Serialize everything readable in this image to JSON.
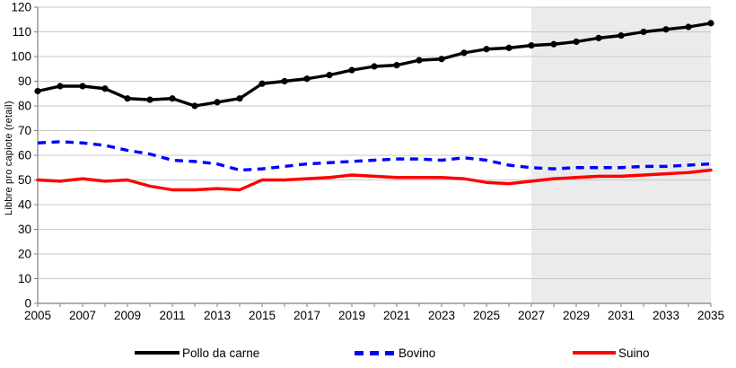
{
  "chart_data": {
    "type": "line",
    "title": "",
    "xlabel": "",
    "ylabel": "Libbre pro capiote (retail)",
    "ylim": [
      0,
      120
    ],
    "ytick_step": 10,
    "x": [
      2005,
      2006,
      2007,
      2008,
      2009,
      2010,
      2011,
      2012,
      2013,
      2014,
      2015,
      2016,
      2017,
      2018,
      2019,
      2020,
      2021,
      2022,
      2023,
      2024,
      2025,
      2026,
      2027,
      2028,
      2029,
      2030,
      2031,
      2032,
      2033,
      2034,
      2035
    ],
    "x_tick_labels": [
      "2005",
      "2007",
      "2009",
      "2011",
      "2013",
      "2015",
      "2017",
      "2019",
      "2021",
      "2023",
      "2025",
      "2027",
      "2029",
      "2031",
      "2033",
      "2035"
    ],
    "grid": true,
    "legend_position": "bottom",
    "forecast_region": {
      "start_year": 2027,
      "end_year": 2035,
      "fill": "#ebebeb"
    },
    "series": [
      {
        "name": "Pollo da carne",
        "color": "#000000",
        "style": "solid",
        "markers": true,
        "values": [
          86,
          88,
          88,
          87,
          83,
          82.5,
          83,
          80,
          81.5,
          83,
          89,
          90,
          91,
          92.5,
          94.5,
          96,
          96.5,
          98.5,
          99,
          101.5,
          103,
          103.5,
          104.5,
          105,
          106,
          107.5,
          108.5,
          110,
          111,
          112,
          113.5
        ]
      },
      {
        "name": "Bovino",
        "color": "#0000fe",
        "style": "dashed",
        "markers": false,
        "values": [
          65,
          65.5,
          65,
          64,
          62,
          60.5,
          58,
          57.5,
          56.5,
          54,
          54.5,
          55.5,
          56.5,
          57,
          57.5,
          58,
          58.5,
          58.5,
          58,
          59,
          58,
          56,
          55,
          54.5,
          55,
          55,
          55,
          55.5,
          55.5,
          56,
          56.5
        ]
      },
      {
        "name": "Suino",
        "color": "#fe0000",
        "style": "solid",
        "markers": false,
        "values": [
          50,
          49.5,
          50.5,
          49.5,
          50,
          47.5,
          46,
          46,
          46.5,
          46,
          50,
          50,
          50.5,
          51,
          52,
          51.5,
          51,
          51,
          51,
          50.5,
          49,
          48.5,
          49.5,
          50.5,
          51,
          51.5,
          51.5,
          52,
          52.5,
          53,
          54
        ]
      }
    ],
    "axis_color": "#808080",
    "grid_color": "#c8c8c8"
  }
}
